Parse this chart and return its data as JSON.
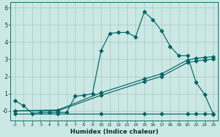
{
  "xlabel": "Humidex (Indice chaleur)",
  "background_color": "#cce8e4",
  "grid_color": "#aaccc8",
  "line_color": "#006666",
  "xlim": [
    -0.5,
    23.5
  ],
  "ylim": [
    -0.55,
    6.3
  ],
  "x_ticks": [
    0,
    1,
    2,
    3,
    4,
    5,
    6,
    7,
    8,
    9,
    10,
    11,
    12,
    13,
    14,
    15,
    16,
    17,
    18,
    19,
    20,
    21,
    22,
    23
  ],
  "y_ticks": [
    0,
    1,
    2,
    3,
    4,
    5,
    6
  ],
  "y_tick_labels": [
    "-0",
    "1",
    "2",
    "3",
    "4",
    "5",
    "6"
  ],
  "series1_x": [
    0,
    1,
    2,
    3,
    4,
    5,
    6,
    7,
    8,
    9,
    10,
    11,
    12,
    13,
    14,
    15,
    16,
    17,
    18,
    19,
    20,
    21,
    22,
    23
  ],
  "series1_y": [
    0.6,
    0.3,
    -0.15,
    -0.1,
    -0.1,
    -0.1,
    -0.1,
    0.85,
    0.9,
    1.0,
    3.5,
    4.5,
    4.55,
    4.55,
    4.3,
    5.75,
    5.3,
    4.65,
    3.75,
    3.2,
    3.2,
    1.65,
    0.95,
    -0.2
  ],
  "series2_x": [
    0,
    5,
    10,
    15,
    17,
    20,
    21,
    22,
    23
  ],
  "series2_y": [
    0.0,
    0.05,
    1.05,
    1.85,
    2.15,
    2.95,
    3.05,
    3.1,
    3.15
  ],
  "series3_x": [
    0,
    5,
    10,
    15,
    17,
    20,
    21,
    22,
    23
  ],
  "series3_y": [
    0.0,
    0.0,
    0.9,
    1.7,
    2.0,
    2.8,
    2.9,
    2.95,
    3.0
  ],
  "series4_x": [
    0,
    5,
    10,
    15,
    17,
    20,
    21,
    22,
    23
  ],
  "series4_y": [
    -0.15,
    -0.15,
    -0.15,
    -0.15,
    -0.15,
    -0.15,
    -0.15,
    -0.15,
    -0.15
  ],
  "marker_size": 2.5,
  "linewidth": 0.9
}
